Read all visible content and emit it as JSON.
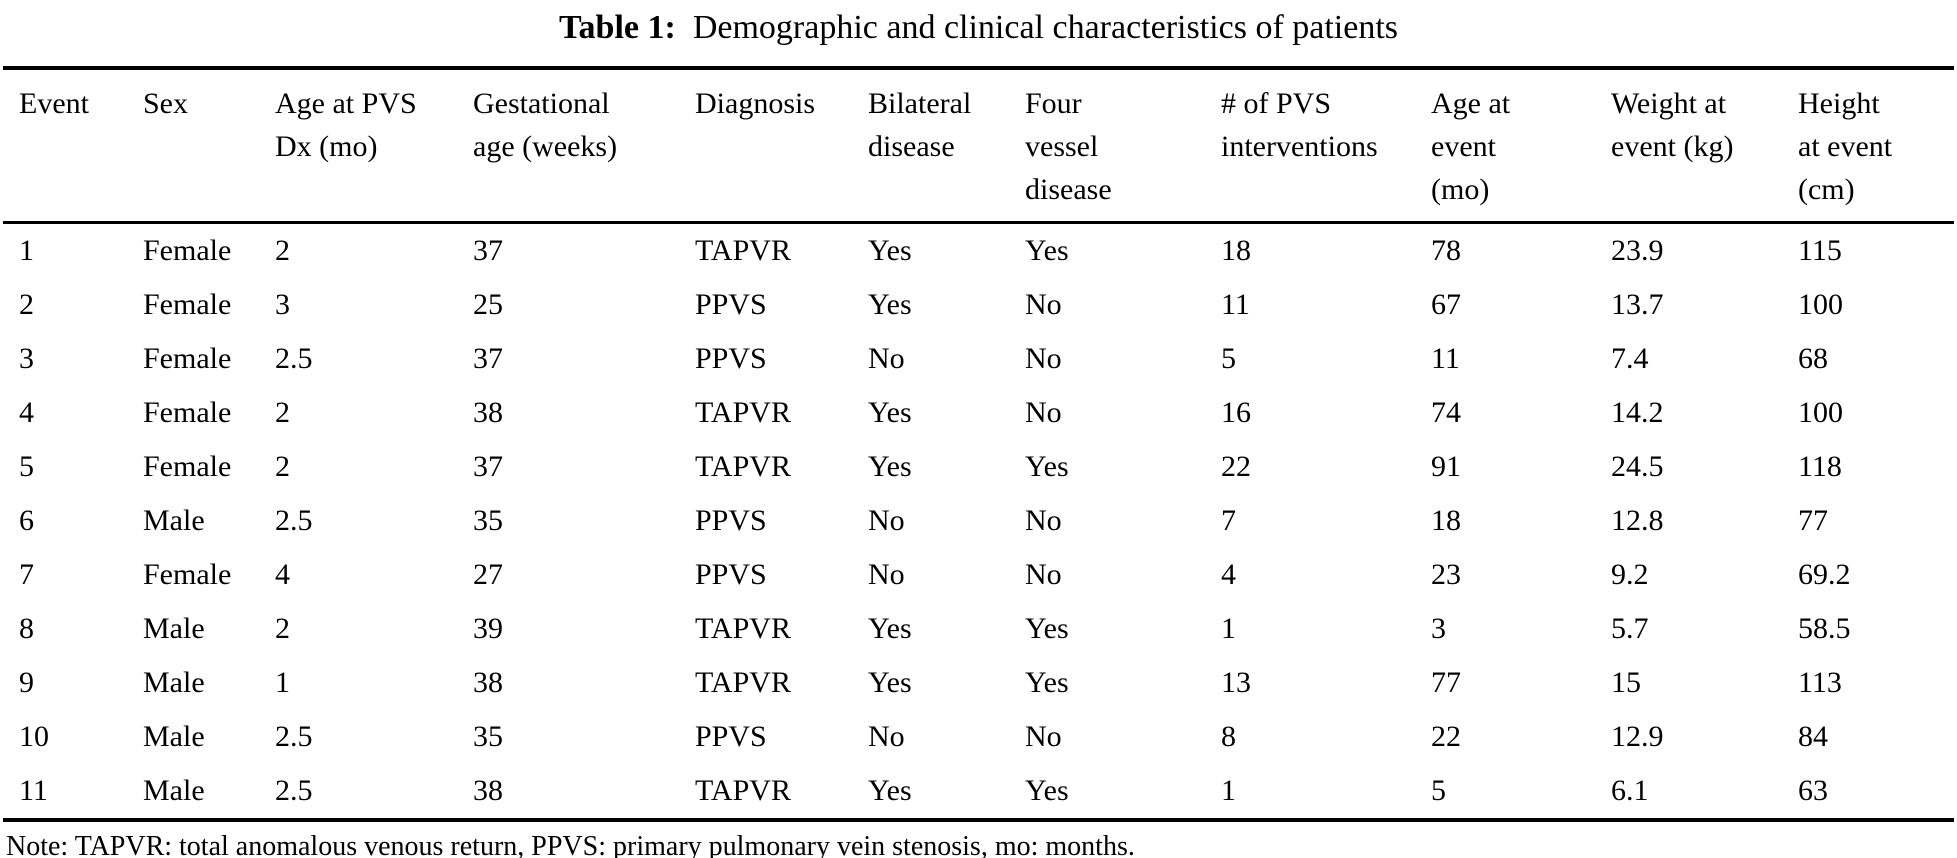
{
  "title": {
    "prefix": "Table 1:",
    "text": "Demographic and clinical characteristics of patients"
  },
  "table": {
    "columns": [
      {
        "id": "event",
        "label": "Event"
      },
      {
        "id": "sex",
        "label": "Sex"
      },
      {
        "id": "age-at-pvs-dx",
        "label": "Age at PVS\nDx (mo)"
      },
      {
        "id": "gestational-age",
        "label": "Gestational\nage (weeks)"
      },
      {
        "id": "diagnosis",
        "label": "Diagnosis"
      },
      {
        "id": "bilateral-disease",
        "label": "Bilateral\ndisease"
      },
      {
        "id": "four-vessel-disease",
        "label": "Four\nvessel\ndisease"
      },
      {
        "id": "pvs-interventions",
        "label": "# of PVS\ninterventions"
      },
      {
        "id": "age-at-event",
        "label": "Age at\nevent\n(mo)"
      },
      {
        "id": "weight-at-event",
        "label": "Weight at\nevent (kg)"
      },
      {
        "id": "height-at-event",
        "label": "Height\nat event\n(cm)"
      }
    ],
    "rows": [
      [
        "1",
        "Female",
        "2",
        "37",
        "TAPVR",
        "Yes",
        "Yes",
        "18",
        "78",
        "23.9",
        "115"
      ],
      [
        "2",
        "Female",
        "3",
        "25",
        "PPVS",
        "Yes",
        "No",
        "11",
        "67",
        "13.7",
        "100"
      ],
      [
        "3",
        "Female",
        "2.5",
        "37",
        "PPVS",
        "No",
        "No",
        "5",
        "11",
        "7.4",
        "68"
      ],
      [
        "4",
        "Female",
        "2",
        "38",
        "TAPVR",
        "Yes",
        "No",
        "16",
        "74",
        "14.2",
        "100"
      ],
      [
        "5",
        "Female",
        "2",
        "37",
        "TAPVR",
        "Yes",
        "Yes",
        "22",
        "91",
        "24.5",
        "118"
      ],
      [
        "6",
        "Male",
        "2.5",
        "35",
        "PPVS",
        "No",
        "No",
        "7",
        "18",
        "12.8",
        "77"
      ],
      [
        "7",
        "Female",
        "4",
        "27",
        "PPVS",
        "No",
        "No",
        "4",
        "23",
        "9.2",
        "69.2"
      ],
      [
        "8",
        "Male",
        "2",
        "39",
        "TAPVR",
        "Yes",
        "Yes",
        "1",
        "3",
        "5.7",
        "58.5"
      ],
      [
        "9",
        "Male",
        "1",
        "38",
        "TAPVR",
        "Yes",
        "Yes",
        "13",
        "77",
        "15",
        "113"
      ],
      [
        "10",
        "Male",
        "2.5",
        "35",
        "PPVS",
        "No",
        "No",
        "8",
        "22",
        "12.9",
        "84"
      ],
      [
        "11",
        "Male",
        "2.5",
        "38",
        "TAPVR",
        "Yes",
        "Yes",
        "1",
        "5",
        "6.1",
        "63"
      ]
    ]
  },
  "note": {
    "text": "Note: TAPVR: total anomalous venous return, PPVS: primary pulmonary vein stenosis, mo: months."
  }
}
